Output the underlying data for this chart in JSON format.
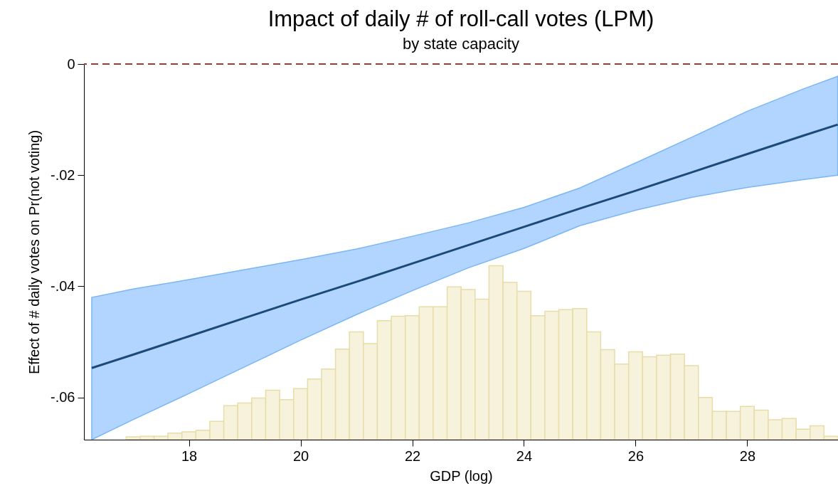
{
  "chart_data": {
    "type": "line",
    "title": "Impact of daily # of roll-call votes (LPM)",
    "subtitle": "by state capacity",
    "xlabel": "GDP (log)",
    "ylabel": "Effect of # daily votes on Pr(not voting)",
    "xlim": [
      16.12,
      29.625
    ],
    "xticks": [
      18,
      20,
      22,
      24,
      26,
      28
    ],
    "ylim": [
      -0.0676,
      0
    ],
    "yticks": [
      {
        "value": -0.06,
        "label": "-.06"
      },
      {
        "value": -0.04,
        "label": "-.04"
      },
      {
        "value": -0.02,
        "label": "-.02"
      },
      {
        "value": 0,
        "label": "0"
      }
    ],
    "grid": false,
    "marker": "none",
    "ref_lines": [
      {
        "axis": "y",
        "value": 0,
        "color": "#9e3a3a",
        "line_style": "dashed"
      }
    ],
    "series": [
      {
        "type": "bar",
        "color": "#e8dca8",
        "x": [
          17,
          17.25,
          17.5,
          17.75,
          18,
          18.25,
          18.5,
          18.75,
          19,
          19.25,
          19.5,
          19.75,
          20,
          20.25,
          20.5,
          20.75,
          21,
          21.25,
          21.5,
          21.75,
          22,
          22.25,
          22.5,
          22.75,
          23,
          23.25,
          23.5,
          23.75,
          24,
          24.25,
          24.5,
          24.75,
          25,
          25.25,
          25.5,
          25.75,
          26,
          26.25,
          26.5,
          26.75,
          27,
          27.25,
          27.5,
          27.75,
          28,
          28.25,
          28.5,
          28.75,
          29,
          29.25,
          29.5
        ],
        "base": [
          -0.0676,
          -0.0676,
          -0.0676,
          -0.0676,
          -0.0676,
          -0.0676,
          -0.0676,
          -0.0676,
          -0.0676,
          -0.0676,
          -0.0676,
          -0.0676,
          -0.0676,
          -0.0676,
          -0.0676,
          -0.0676,
          -0.0676,
          -0.0676,
          -0.0676,
          -0.0676,
          -0.0676,
          -0.0676,
          -0.0676,
          -0.0676,
          -0.0676,
          -0.0676,
          -0.0676,
          -0.0676,
          -0.0676,
          -0.0676,
          -0.0676,
          -0.0676,
          -0.0676,
          -0.0676,
          -0.0676,
          -0.0676,
          -0.0676,
          -0.0676,
          -0.0676,
          -0.0676,
          -0.0676,
          -0.0676,
          -0.0676,
          -0.0676,
          -0.0676,
          -0.0676,
          -0.0676,
          -0.0676,
          -0.0676,
          -0.0676,
          -0.0676
        ],
        "values": [
          0.0005,
          0.0006,
          0.0006,
          0.0012,
          0.0014,
          0.0017,
          0.0033,
          0.0061,
          0.0066,
          0.0075,
          0.0089,
          0.0072,
          0.0092,
          0.0109,
          0.0127,
          0.0163,
          0.0194,
          0.0173,
          0.0214,
          0.0222,
          0.0223,
          0.0239,
          0.0239,
          0.0275,
          0.027,
          0.0253,
          0.0313,
          0.0283,
          0.0267,
          0.0223,
          0.0231,
          0.0234,
          0.0236,
          0.0194,
          0.0162,
          0.0136,
          0.0158,
          0.0149,
          0.0152,
          0.0154,
          0.0133,
          0.0076,
          0.0051,
          0.0051,
          0.006,
          0.0053,
          0.0036,
          0.0038,
          0.0019,
          0.0025,
          0.0006
        ]
      },
      {
        "color": "#1b4a78",
        "x": [
          16.26,
          17,
          18,
          19,
          20,
          21,
          22,
          23,
          24,
          25,
          26,
          27,
          28,
          29,
          29.62
        ],
        "values": [
          -0.0547,
          -0.0523,
          -0.049,
          -0.0457,
          -0.0424,
          -0.0392,
          -0.0359,
          -0.0326,
          -0.0293,
          -0.026,
          -0.0228,
          -0.0195,
          -0.0162,
          -0.0129,
          -0.0109
        ],
        "upper": [
          -0.042,
          -0.0405,
          -0.0388,
          -0.037,
          -0.0352,
          -0.0333,
          -0.031,
          -0.0286,
          -0.0258,
          -0.0223,
          -0.0178,
          -0.0132,
          -0.0085,
          -0.0045,
          -0.0022
        ],
        "lower": [
          -0.0676,
          -0.064,
          -0.0593,
          -0.0545,
          -0.0497,
          -0.0451,
          -0.0408,
          -0.0367,
          -0.0332,
          -0.0291,
          -0.0263,
          -0.024,
          -0.0222,
          -0.0208,
          -0.02
        ]
      }
    ]
  }
}
